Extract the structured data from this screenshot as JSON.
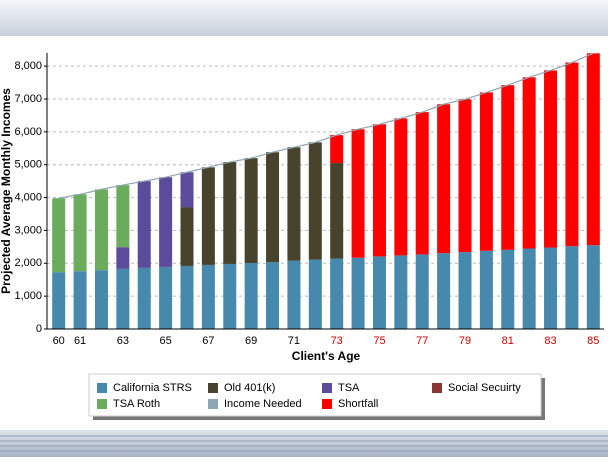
{
  "chart_data": {
    "type": "stacked_bar",
    "xlabel": "Client's Age",
    "ylabel": "Projected Average Monthly Incomes",
    "categories": [
      60,
      61,
      null,
      63,
      null,
      65,
      null,
      67,
      null,
      69,
      null,
      71,
      null,
      73,
      null,
      75,
      null,
      77,
      null,
      79,
      null,
      81,
      null,
      83,
      null,
      85
    ],
    "ylim": [
      0,
      8400
    ],
    "yticks": [
      0,
      {
        "value": 1000,
        "label": "1,000"
      },
      {
        "value": 2000,
        "label": "2,000"
      },
      {
        "value": 3000,
        "label": "3,000"
      },
      {
        "value": 4000,
        "label": "4,000"
      },
      {
        "value": 5000,
        "label": "5,000"
      },
      {
        "value": 6000,
        "label": "6,000"
      },
      {
        "value": 7000,
        "label": "7,000"
      },
      {
        "value": 8000,
        "label": "8,000"
      }
    ],
    "grid": true,
    "shortfall_label_color": "#cc0000",
    "series": [
      {
        "name": "California STRS",
        "color": "#4788ad",
        "values": [
          1730,
          1760,
          1790,
          1830,
          1860,
          1890,
          1920,
          1950,
          1980,
          2010,
          2040,
          2080,
          2110,
          2140,
          2170,
          2210,
          2240,
          2270,
          2310,
          2340,
          2380,
          2410,
          2450,
          2480,
          2520,
          2550
        ]
      },
      {
        "name": "Old 401(k)",
        "color": "#48432c",
        "values": [
          null,
          null,
          null,
          null,
          null,
          null,
          1790,
          2970,
          3100,
          3190,
          3340,
          3450,
          3570,
          2910,
          null,
          null,
          null,
          null,
          null,
          null,
          null,
          null,
          null,
          null,
          null,
          null
        ]
      },
      {
        "name": "TSA",
        "color": "#5b4b9b",
        "values": [
          null,
          null,
          null,
          660,
          2640,
          2730,
          1060,
          null,
          null,
          null,
          null,
          null,
          null,
          null,
          null,
          null,
          null,
          null,
          null,
          null,
          null,
          null,
          null,
          null,
          null,
          null
        ]
      },
      {
        "name": "Social Secuirty",
        "color": "#8b3535",
        "values": [
          null,
          null,
          null,
          null,
          null,
          null,
          null,
          null,
          null,
          null,
          null,
          null,
          null,
          null,
          null,
          null,
          null,
          null,
          null,
          null,
          null,
          null,
          null,
          null,
          null,
          null
        ]
      },
      {
        "name": "TSA Roth",
        "color": "#6aab5c",
        "values": [
          2250,
          2340,
          2460,
          1890,
          null,
          null,
          null,
          null,
          null,
          null,
          null,
          null,
          null,
          null,
          null,
          null,
          null,
          null,
          null,
          null,
          null,
          null,
          null,
          null,
          null,
          null
        ]
      },
      {
        "name": "Income Needed",
        "color": "#8fa6b4",
        "line": true,
        "values": [
          3980,
          4100,
          4250,
          4380,
          4500,
          4620,
          4770,
          4920,
          5080,
          5200,
          5380,
          5530,
          5680,
          5900,
          6080,
          6230,
          6410,
          6600,
          6840,
          6990,
          7200,
          7420,
          7660,
          7870,
          8110,
          8390
        ]
      },
      {
        "name": "Shortfall",
        "color": "#ff0000",
        "values": [
          null,
          null,
          null,
          null,
          null,
          null,
          null,
          null,
          null,
          null,
          null,
          null,
          null,
          850,
          3910,
          4020,
          4170,
          4330,
          4530,
          4650,
          4820,
          5010,
          5210,
          5390,
          5590,
          5840
        ]
      }
    ]
  }
}
